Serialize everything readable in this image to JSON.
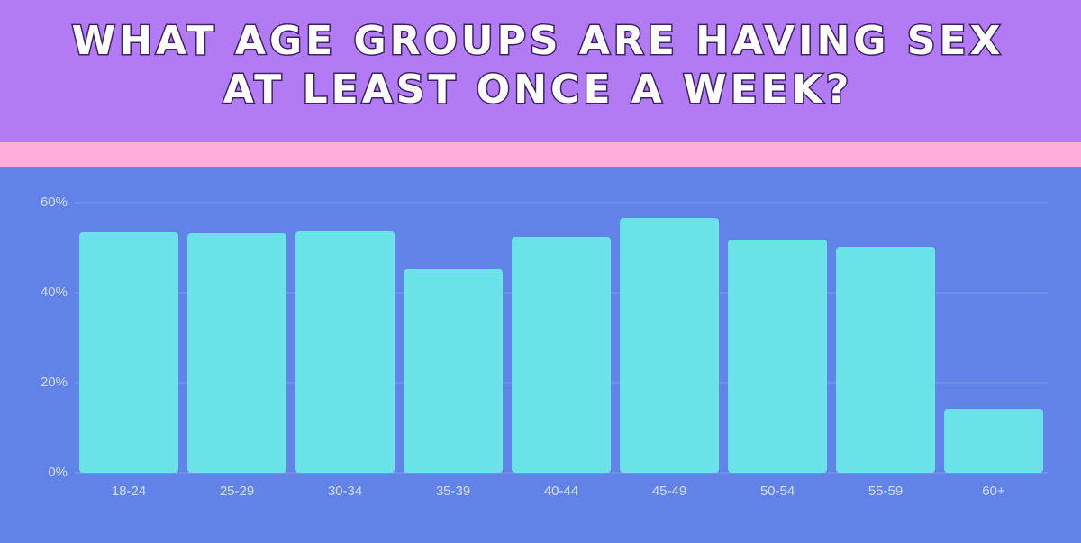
{
  "chart_data": {
    "type": "bar",
    "title": [
      "WHAT AGE GROUPS ARE HAVING SEX",
      "AT LEAST ONCE A WEEK?"
    ],
    "categories": [
      "18-24",
      "25-29",
      "30-34",
      "35-39",
      "40-44",
      "45-49",
      "50-54",
      "55-59",
      "60+"
    ],
    "values": [
      53.4,
      53.2,
      53.6,
      45.2,
      52.4,
      56.6,
      51.8,
      50.2,
      14.2
    ],
    "color": "#6ae3e8",
    "ylim": [
      0,
      60
    ],
    "yticks": [
      {
        "value": 0,
        "label": "0%"
      },
      {
        "value": 20,
        "label": "20%"
      },
      {
        "value": 40,
        "label": "40%"
      },
      {
        "value": 60,
        "label": "60%"
      }
    ],
    "grid": true
  }
}
